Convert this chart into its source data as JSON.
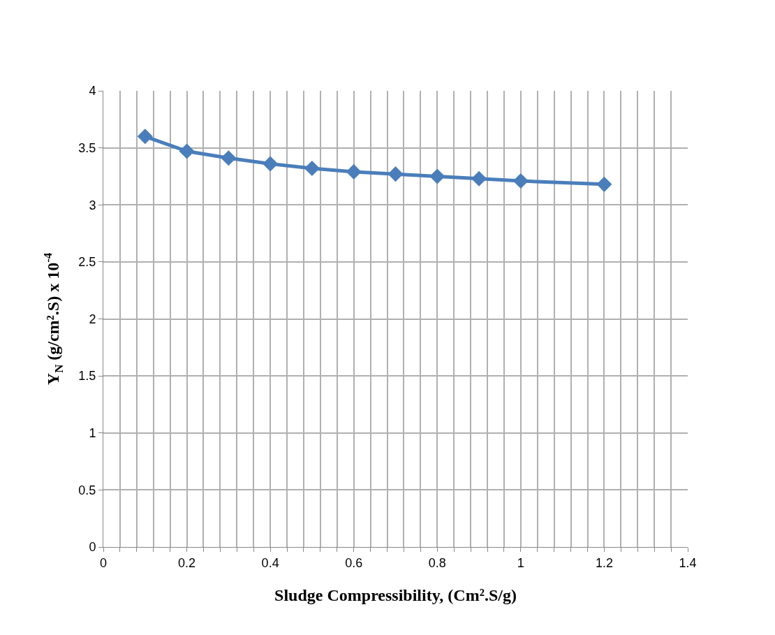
{
  "chart_data": {
    "type": "line",
    "xlabel": "Sludge Compressibility, (Cm².S/g)",
    "ylabel": "Y$_{N}$ (g/cm².S) x 10$^{-4}$",
    "x": [
      0.1,
      0.2,
      0.3,
      0.4,
      0.5,
      0.6,
      0.7,
      0.8,
      0.9,
      1.0,
      1.2
    ],
    "series": [
      {
        "color": "#4a7ebb",
        "values": [
          3.6,
          3.47,
          3.41,
          3.36,
          3.32,
          3.29,
          3.27,
          3.25,
          3.23,
          3.21,
          3.18
        ]
      }
    ],
    "xlim": [
      0,
      1.4
    ],
    "xticks": [
      0,
      {
        "value": 0.04,
        "label": null
      },
      {
        "value": 0.08,
        "label": null
      },
      {
        "value": 0.12,
        "label": null
      },
      {
        "value": 0.16,
        "label": null
      },
      0.2,
      {
        "value": 0.24,
        "label": null
      },
      {
        "value": 0.28,
        "label": null
      },
      {
        "value": 0.32,
        "label": null
      },
      {
        "value": 0.36,
        "label": null
      },
      0.4,
      {
        "value": 0.44,
        "label": null
      },
      {
        "value": 0.48,
        "label": null
      },
      {
        "value": 0.52,
        "label": null
      },
      {
        "value": 0.56,
        "label": null
      },
      0.6,
      {
        "value": 0.64,
        "label": null
      },
      {
        "value": 0.68,
        "label": null
      },
      {
        "value": 0.72,
        "label": null
      },
      {
        "value": 0.76,
        "label": null
      },
      0.8,
      {
        "value": 0.84,
        "label": null
      },
      {
        "value": 0.88,
        "label": null
      },
      {
        "value": 0.92,
        "label": null
      },
      {
        "value": 0.96,
        "label": null
      },
      1,
      {
        "value": 1.04,
        "label": null
      },
      {
        "value": 1.08,
        "label": null
      },
      {
        "value": 1.12,
        "label": null
      },
      {
        "value": 1.16,
        "label": null
      },
      1.2,
      {
        "value": 1.24,
        "label": null
      },
      {
        "value": 1.28,
        "label": null
      },
      {
        "value": 1.32,
        "label": null
      },
      {
        "value": 1.36,
        "label": null
      },
      1.4
    ],
    "ylim": [
      0,
      4
    ],
    "yticks": [
      0,
      0.5,
      1,
      1.5,
      2,
      2.5,
      3,
      3.5,
      4
    ],
    "grid": true,
    "marker": "diamond",
    "line_style": "solid"
  }
}
